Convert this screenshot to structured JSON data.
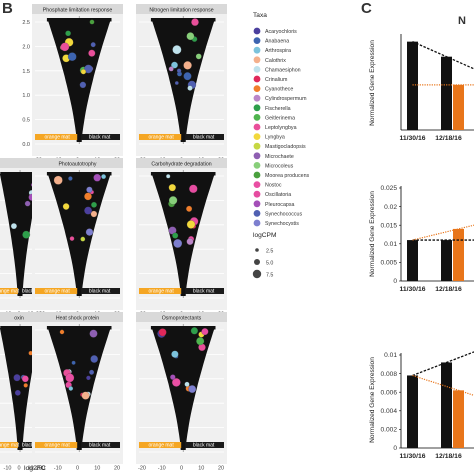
{
  "panel_labels": {
    "b": "B",
    "c": "C",
    "c_header": "N"
  },
  "colors": {
    "panel_bg": "#f0f0f0",
    "strip_bg": "#d9d9d9",
    "orange_mat": "#f5a623",
    "black_mat": "#1a1a1a",
    "points": "#111111",
    "dashed_black": "#111111",
    "dashed_orange": "#e8751a",
    "bar_black": "#111111",
    "bar_orange": "#e8751a"
  },
  "volcano": {
    "x_axis_label": "log2FC",
    "x_ticks": [
      "-20",
      "-10",
      "0",
      "10",
      "20"
    ],
    "y_ticks": [
      "0.0",
      "0.5",
      "1.0",
      "1.5",
      "2.0",
      "2.5"
    ],
    "bar_labels": {
      "orange": "orange mat",
      "black": "black mat"
    },
    "panels": [
      {
        "title": "Phosphate limitation response"
      },
      {
        "title": "Nitrogen limitation response"
      },
      {
        "title": ""
      },
      {
        "title": "Photoautotrophy"
      },
      {
        "title": "Carbohydrate degradation"
      },
      {
        "title": "oxin"
      },
      {
        "title": "Heat shock protein"
      },
      {
        "title": "Osmoprotectants"
      }
    ]
  },
  "legend": {
    "taxa_title": "Taxa",
    "taxa": [
      {
        "name": "Acaryochloris",
        "color": "#4b3f9e"
      },
      {
        "name": "Anabaena",
        "color": "#3d64b0"
      },
      {
        "name": "Arthrospira",
        "color": "#7cc3dc"
      },
      {
        "name": "Calothrix",
        "color": "#f4b08c"
      },
      {
        "name": "Chamaesiphon",
        "color": "#bfe2ec"
      },
      {
        "name": "Crinalium",
        "color": "#e0285a"
      },
      {
        "name": "Cyanothece",
        "color": "#f17e2b"
      },
      {
        "name": "Cylindrospermum",
        "color": "#bb86c8"
      },
      {
        "name": "Fischerella",
        "color": "#2e9f4b"
      },
      {
        "name": "Geitlerinema",
        "color": "#4fb44e"
      },
      {
        "name": "Leptolyngbya",
        "color": "#e94f9a"
      },
      {
        "name": "Lyngbya",
        "color": "#f2d83c"
      },
      {
        "name": "Mastigocladopsis",
        "color": "#c6d743"
      },
      {
        "name": "Microchaete",
        "color": "#8e5fb2"
      },
      {
        "name": "Microcoleus",
        "color": "#88cf7a"
      },
      {
        "name": "Moorea producens",
        "color": "#4aa03e"
      },
      {
        "name": "Nostoc",
        "color": "#e94fa3"
      },
      {
        "name": "Oscillatoria",
        "color": "#e64ca0"
      },
      {
        "name": "Pleurocapsa",
        "color": "#a44fb8"
      },
      {
        "name": "Synechococcus",
        "color": "#5060b2"
      },
      {
        "name": "Synechocystis",
        "color": "#7d7fcf"
      }
    ],
    "size_title": "logCPM",
    "sizes": [
      "2.5",
      "5.0",
      "7.5"
    ]
  },
  "chart_data": [
    {
      "type": "bar",
      "title": "",
      "ylabel": "Normalized Gene Expression",
      "categories": [
        "11/30/16",
        "12/18/16"
      ],
      "series": [
        {
          "values": [
            0.47,
            0.39
          ]
        },
        {
          "values": [
            null,
            0.24
          ]
        }
      ],
      "y_ticks": [],
      "trend_lines": [
        {
          "color": "black",
          "style": "dashed"
        },
        {
          "color": "orange",
          "style": "dotted"
        }
      ]
    },
    {
      "type": "bar",
      "title": "",
      "ylabel": "Normalized Gene Expression",
      "categories": [
        "11/30/16",
        "12/18/16"
      ],
      "series": [
        {
          "values": [
            0.011,
            0.011
          ]
        },
        {
          "values": [
            null,
            0.014
          ]
        }
      ],
      "ylim": [
        0,
        0.025
      ],
      "y_ticks": [
        "0",
        "0.005",
        "0.01",
        "0.015",
        "0.02",
        "0.025"
      ],
      "trend_lines": [
        {
          "color": "black",
          "style": "dashed"
        },
        {
          "color": "orange",
          "style": "dotted"
        }
      ]
    },
    {
      "type": "bar",
      "title": "",
      "ylabel": "Normalized Gene Expression",
      "categories": [
        "11/30/16",
        "12/18/16"
      ],
      "series": [
        {
          "values": [
            0.0078,
            0.0092
          ]
        },
        {
          "values": [
            null,
            0.0062
          ]
        }
      ],
      "ylim": [
        0,
        0.01
      ],
      "y_ticks": [
        "0",
        "0.002",
        "0.004",
        "0.006",
        "0.008",
        "0.01"
      ],
      "trend_lines": [
        {
          "color": "black",
          "style": "dashed"
        },
        {
          "color": "orange",
          "style": "dotted"
        }
      ]
    }
  ]
}
